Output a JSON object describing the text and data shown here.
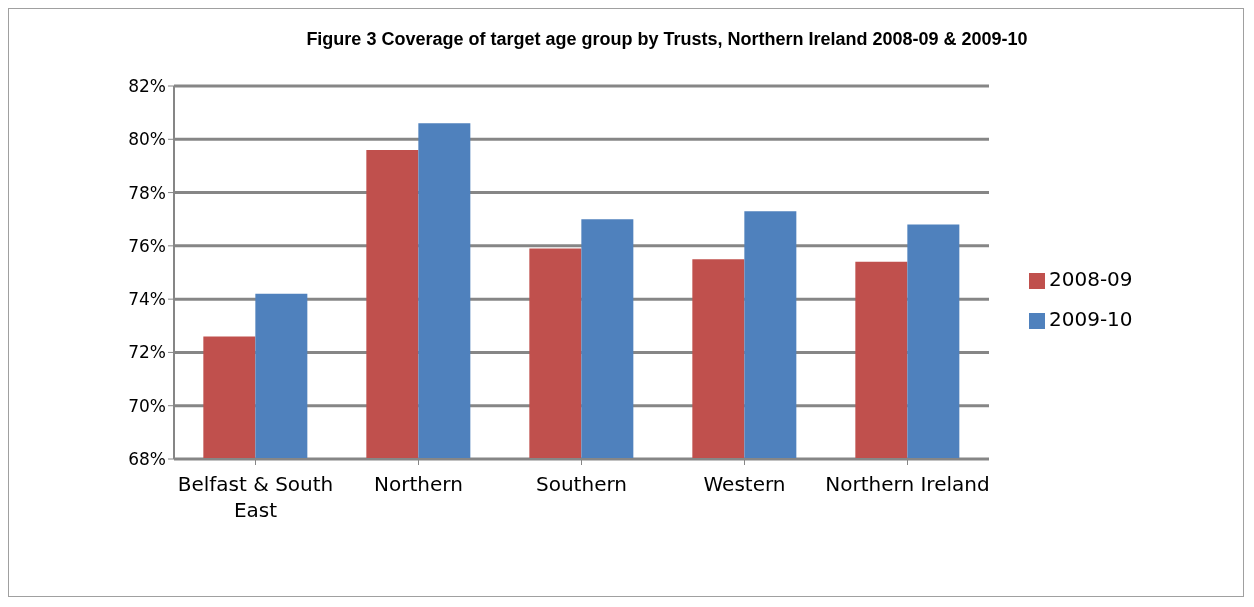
{
  "chart_data": {
    "type": "bar",
    "title": "Figure  3 Coverage of target age group by Trusts, Northern Ireland 2008-09 & 2009-10",
    "categories": [
      "Belfast & South East",
      "Northern",
      "Southern",
      "Western",
      "Northern Ireland"
    ],
    "series": [
      {
        "name": "2008-09",
        "color": "#c0504d",
        "values": [
          72.6,
          79.6,
          75.9,
          75.5,
          75.4
        ]
      },
      {
        "name": "2009-10",
        "color": "#4f81bd",
        "values": [
          74.2,
          80.6,
          77.0,
          77.3,
          76.8
        ]
      }
    ],
    "ylim": [
      68,
      82
    ],
    "yticks": [
      {
        "value": 68,
        "label": "68%"
      },
      {
        "value": 70,
        "label": "70%"
      },
      {
        "value": 72,
        "label": "72%"
      },
      {
        "value": 74,
        "label": "74%"
      },
      {
        "value": 76,
        "label": "76%"
      },
      {
        "value": 78,
        "label": "78%"
      },
      {
        "value": 80,
        "label": "80%"
      },
      {
        "value": 82,
        "label": "82%"
      }
    ],
    "grid": "y",
    "legend": "right"
  }
}
